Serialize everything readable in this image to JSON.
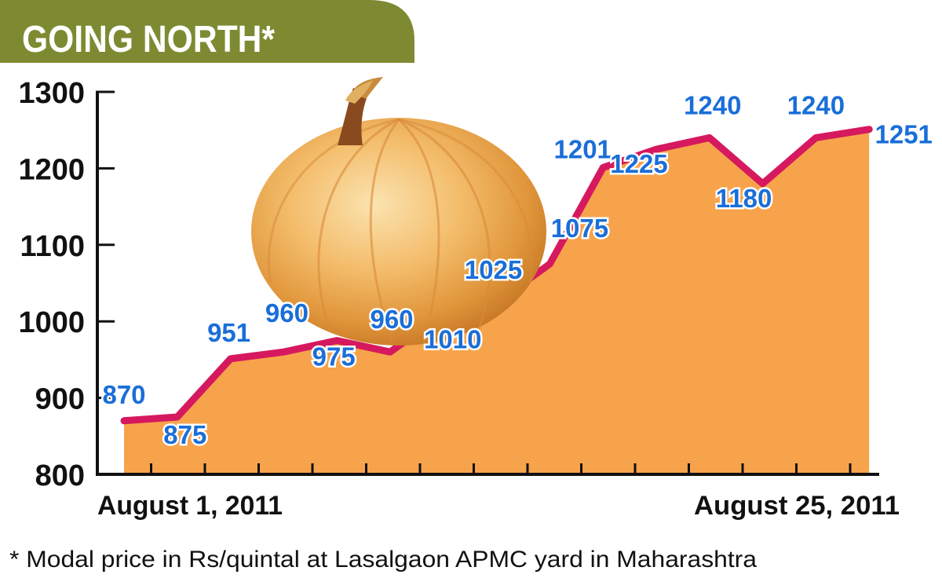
{
  "title": "GOING NORTH*",
  "footnote": "* Modal price in Rs/quintal at Lasalgaon APMC yard in Maharashtra",
  "colors": {
    "banner": "#7e8a32",
    "area": "#f7a34c",
    "line": "#d6195f",
    "data_label": "#1a6ed8",
    "axis": "#111111"
  },
  "chart_data": {
    "type": "area",
    "title": "GOING NORTH*",
    "xlabel": "",
    "ylabel": "",
    "x_tick_labels": [
      "August 1, 2011",
      "August 25, 2011"
    ],
    "values": [
      870,
      875,
      951,
      960,
      975,
      960,
      1010,
      1025,
      1075,
      1201,
      1225,
      1240,
      1180,
      1240,
      1251
    ],
    "yticks": [
      800,
      900,
      1000,
      1100,
      1200,
      1300
    ],
    "ylim": [
      800,
      1300
    ],
    "grid": false,
    "legend": "none"
  }
}
